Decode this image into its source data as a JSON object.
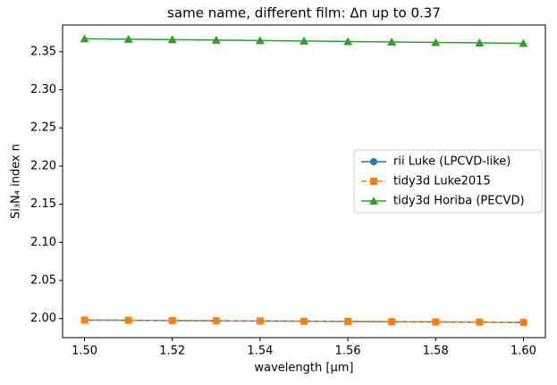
{
  "chart_data": {
    "type": "line",
    "title": "same name, different film: Δn up to 0.37",
    "xlabel": "wavelength [µm]",
    "ylabel": "Si₃N₄ index n",
    "x": [
      1.5,
      1.51,
      1.52,
      1.53,
      1.54,
      1.55,
      1.56,
      1.57,
      1.58,
      1.59,
      1.6
    ],
    "series": [
      {
        "name": "rii Luke (LPCVD-like)",
        "color": "#1f77b4",
        "marker": "circle",
        "linestyle": "solid",
        "values": [
          1.998,
          1.9977,
          1.9974,
          1.9971,
          1.9968,
          1.9965,
          1.9962,
          1.9959,
          1.9956,
          1.9953,
          1.995
        ]
      },
      {
        "name": "tidy3d Luke2015",
        "color": "#ff7f0e",
        "marker": "square",
        "linestyle": "dashed",
        "values": [
          1.998,
          1.9977,
          1.9974,
          1.9971,
          1.9968,
          1.9965,
          1.9962,
          1.9959,
          1.9956,
          1.9953,
          1.995
        ]
      },
      {
        "name": "tidy3d Horiba (PECVD)",
        "color": "#2ca02c",
        "marker": "triangle",
        "linestyle": "solid",
        "values": [
          2.367,
          2.3664,
          2.3658,
          2.3652,
          2.3646,
          2.364,
          2.3634,
          2.3628,
          2.3622,
          2.3616,
          2.361
        ]
      }
    ],
    "xlim": [
      1.495,
      1.605
    ],
    "ylim": [
      1.975,
      2.385
    ],
    "xticks": [
      {
        "value": 1.5,
        "label": "1.50"
      },
      {
        "value": 1.52,
        "label": "1.52"
      },
      {
        "value": 1.54,
        "label": "1.54"
      },
      {
        "value": 1.56,
        "label": "1.56"
      },
      {
        "value": 1.58,
        "label": "1.58"
      },
      {
        "value": 1.6,
        "label": "1.60"
      }
    ],
    "yticks": [
      {
        "value": 2.0,
        "label": "2.00"
      },
      {
        "value": 2.05,
        "label": "2.05"
      },
      {
        "value": 2.1,
        "label": "2.10"
      },
      {
        "value": 2.15,
        "label": "2.15"
      },
      {
        "value": 2.2,
        "label": "2.20"
      },
      {
        "value": 2.25,
        "label": "2.25"
      },
      {
        "value": 2.3,
        "label": "2.30"
      },
      {
        "value": 2.35,
        "label": "2.35"
      }
    ],
    "legend": "center right",
    "grid": false
  }
}
